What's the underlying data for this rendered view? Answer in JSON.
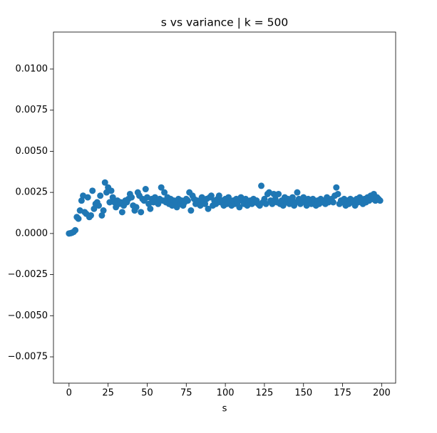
{
  "chart_data": {
    "type": "scatter",
    "title": "s vs variance | k = 500",
    "xlabel": "s",
    "color": "#1f77b4",
    "xlim": [
      -9.95,
      208.95
    ],
    "xticks": [
      0,
      25,
      50,
      75,
      100,
      125,
      150,
      175,
      200
    ],
    "ylim": [
      -0.0091,
      0.01225
    ],
    "yticks": [
      {
        "value": -0.0075,
        "label": "−0.0075"
      },
      {
        "value": -0.005,
        "label": "−0.0050"
      },
      {
        "value": -0.0025,
        "label": "−0.0025"
      },
      {
        "value": 0,
        "label": "0.0000"
      },
      {
        "value": 0.0025,
        "label": "0.0025"
      },
      {
        "value": 0.005,
        "label": "0.0050"
      },
      {
        "value": 0.0075,
        "label": "0.0075"
      },
      {
        "value": 0.01,
        "label": "0.0100"
      }
    ],
    "x": [
      0,
      1,
      2,
      3,
      4,
      5,
      6,
      7,
      8,
      9,
      10,
      11,
      12,
      13,
      14,
      15,
      16,
      17,
      18,
      19,
      20,
      21,
      22,
      23,
      24,
      25,
      26,
      27,
      28,
      29,
      30,
      31,
      32,
      33,
      34,
      35,
      36,
      37,
      38,
      39,
      40,
      41,
      42,
      43,
      44,
      45,
      46,
      47,
      48,
      49,
      50,
      51,
      52,
      53,
      54,
      55,
      56,
      57,
      58,
      59,
      60,
      61,
      62,
      63,
      64,
      65,
      66,
      67,
      68,
      69,
      70,
      71,
      72,
      73,
      74,
      75,
      76,
      77,
      78,
      79,
      80,
      81,
      82,
      83,
      84,
      85,
      86,
      87,
      88,
      89,
      90,
      91,
      92,
      93,
      94,
      95,
      96,
      97,
      98,
      99,
      100,
      101,
      102,
      103,
      104,
      105,
      106,
      107,
      108,
      109,
      110,
      111,
      112,
      113,
      114,
      115,
      116,
      117,
      118,
      119,
      120,
      121,
      122,
      123,
      124,
      125,
      126,
      127,
      128,
      129,
      130,
      131,
      132,
      133,
      134,
      135,
      136,
      137,
      138,
      139,
      140,
      141,
      142,
      143,
      144,
      145,
      146,
      147,
      148,
      149,
      150,
      151,
      152,
      153,
      154,
      155,
      156,
      157,
      158,
      159,
      160,
      161,
      162,
      163,
      164,
      165,
      166,
      167,
      168,
      169,
      170,
      171,
      172,
      173,
      174,
      175,
      176,
      177,
      178,
      179,
      180,
      181,
      182,
      183,
      184,
      185,
      186,
      187,
      188,
      189,
      190,
      191,
      192,
      193,
      194,
      195,
      196,
      197,
      198,
      199
    ],
    "values": [
      0.0,
      2e-05,
      5e-05,
      0.0001,
      0.0002,
      0.001,
      0.0009,
      0.0014,
      0.002,
      0.0023,
      0.0013,
      0.0012,
      0.0022,
      0.001,
      0.0011,
      0.0026,
      0.0015,
      0.0018,
      0.0019,
      0.0017,
      0.0023,
      0.0011,
      0.0014,
      0.0031,
      0.0025,
      0.0028,
      0.0019,
      0.0026,
      0.0022,
      0.0019,
      0.0016,
      0.002,
      0.0018,
      0.0019,
      0.0013,
      0.0017,
      0.002,
      0.0019,
      0.0021,
      0.0024,
      0.0022,
      0.0017,
      0.0014,
      0.0016,
      0.0025,
      0.0023,
      0.0013,
      0.0021,
      0.002,
      0.0027,
      0.0022,
      0.0018,
      0.0015,
      0.0021,
      0.0019,
      0.0022,
      0.002,
      0.0018,
      0.0021,
      0.0028,
      0.002,
      0.0025,
      0.0019,
      0.0022,
      0.0018,
      0.0021,
      0.0017,
      0.002,
      0.0019,
      0.0016,
      0.0021,
      0.0018,
      0.002,
      0.0017,
      0.0019,
      0.0021,
      0.002,
      0.0025,
      0.0014,
      0.0023,
      0.0021,
      0.0018,
      0.002,
      0.0019,
      0.0017,
      0.0022,
      0.002,
      0.0018,
      0.0021,
      0.0015,
      0.0022,
      0.0023,
      0.0017,
      0.002,
      0.0018,
      0.0021,
      0.0023,
      0.0019,
      0.002,
      0.0017,
      0.0021,
      0.0018,
      0.0022,
      0.0019,
      0.0017,
      0.002,
      0.0018,
      0.0021,
      0.0019,
      0.0016,
      0.0022,
      0.002,
      0.0018,
      0.0021,
      0.0017,
      0.0019,
      0.002,
      0.0018,
      0.0021,
      0.0019,
      0.002,
      0.0018,
      0.0017,
      0.0029,
      0.0019,
      0.0021,
      0.0018,
      0.0024,
      0.0025,
      0.002,
      0.0018,
      0.0024,
      0.0021,
      0.0019,
      0.0024,
      0.0018,
      0.002,
      0.0017,
      0.0022,
      0.0019,
      0.0021,
      0.0018,
      0.002,
      0.0022,
      0.0017,
      0.0019,
      0.0025,
      0.0021,
      0.0018,
      0.002,
      0.0022,
      0.0019,
      0.0017,
      0.0021,
      0.002,
      0.0018,
      0.0021,
      0.0019,
      0.0017,
      0.002,
      0.0018,
      0.0021,
      0.0019,
      0.002,
      0.0018,
      0.0022,
      0.0019,
      0.002,
      0.0021,
      0.0019,
      0.0023,
      0.0028,
      0.0024,
      0.0018,
      0.002,
      0.0019,
      0.0021,
      0.0017,
      0.002,
      0.0018,
      0.0021,
      0.0019,
      0.002,
      0.0017,
      0.0021,
      0.0019,
      0.0022,
      0.002,
      0.0018,
      0.0021,
      0.0019,
      0.0022,
      0.002,
      0.0023,
      0.0021,
      0.0024,
      0.002,
      0.0022,
      0.0021,
      0.002
    ]
  }
}
